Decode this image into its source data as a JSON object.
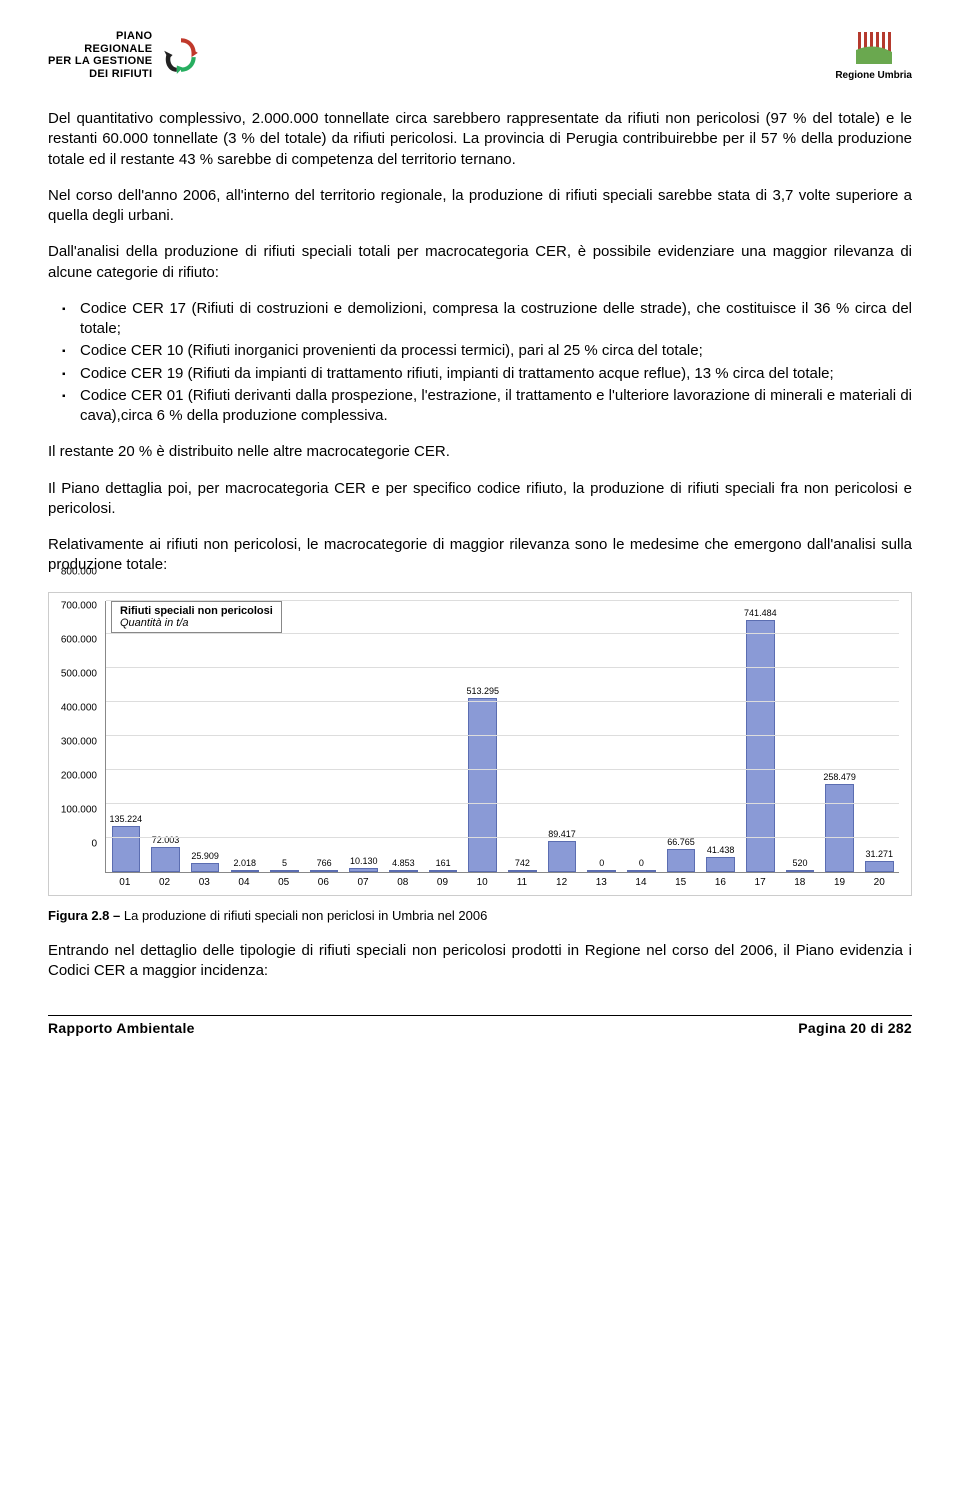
{
  "header": {
    "left_logo_lines": [
      "PIANO",
      "REGIONALE",
      "PER LA GESTIONE",
      "DEI RIFIUTI"
    ],
    "right_label": "Regione Umbria"
  },
  "paragraphs": {
    "p1": "Del quantitativo complessivo, 2.000.000 tonnellate circa sarebbero rappresentate da rifiuti non pericolosi (97 % del totale) e le restanti 60.000 tonnellate (3 % del totale) da rifiuti pericolosi. La provincia di Perugia contribuirebbe per il 57 % della produzione totale ed il restante 43 % sarebbe di competenza del territorio ternano.",
    "p2": "Nel corso dell'anno 2006, all'interno del territorio regionale, la produzione di rifiuti speciali sarebbe stata di 3,7 volte superiore a quella degli urbani.",
    "p3": "Dall'analisi della produzione di rifiuti speciali totali per macrocategoria CER, è possibile evidenziare una maggior rilevanza di alcune categorie di rifiuto:",
    "p4": "Il restante 20 % è distribuito nelle altre macrocategorie CER.",
    "p5": "Il Piano dettaglia poi, per macrocategoria CER e per specifico codice rifiuto, la produzione di rifiuti speciali fra non pericolosi e pericolosi.",
    "p6": "Relativamente ai rifiuti non pericolosi, le macrocategorie di maggior rilevanza sono le medesime che emergono dall'analisi sulla produzione totale:",
    "p7": "Entrando nel dettaglio delle tipologie di rifiuti speciali non pericolosi prodotti in Regione nel corso del 2006, il Piano evidenzia i Codici CER a maggior incidenza:"
  },
  "bullets": {
    "b1": "Codice CER 17 (Rifiuti di costruzioni e demolizioni, compresa la costruzione delle strade), che costituisce il 36 % circa del totale;",
    "b2": "Codice CER 10 (Rifiuti inorganici provenienti da processi termici), pari al 25 % circa del totale;",
    "b3": "Codice CER 19 (Rifiuti da impianti di trattamento rifiuti, impianti di trattamento acque reflue), 13 % circa del totale;",
    "b4": "Codice CER 01 (Rifiuti derivanti dalla prospezione, l'estrazione, il trattamento e l'ulteriore lavorazione di minerali e materiali di cava),circa 6 % della produzione complessiva."
  },
  "chart": {
    "title_line1": "Rifiuti speciali non pericolosi",
    "title_line2": "Quantità in t/a",
    "y_max": 800000,
    "y_ticks": [
      0,
      100000,
      200000,
      300000,
      400000,
      500000,
      600000,
      700000,
      800000
    ],
    "y_tick_labels": [
      "0",
      "100.000",
      "200.000",
      "300.000",
      "400.000",
      "500.000",
      "600.000",
      "700.000",
      "800.000"
    ],
    "categories": [
      "01",
      "02",
      "03",
      "04",
      "05",
      "06",
      "07",
      "08",
      "09",
      "10",
      "11",
      "12",
      "13",
      "14",
      "15",
      "16",
      "17",
      "18",
      "19",
      "20"
    ],
    "values": [
      135224,
      72003,
      25909,
      2018,
      5,
      766,
      10130,
      4853,
      161,
      513295,
      742,
      89417,
      0,
      0,
      66765,
      41438,
      741484,
      520,
      258479,
      31271
    ],
    "value_labels": [
      "135.224",
      "72.003",
      "25.909",
      "2.018",
      "5",
      "766",
      "10.130",
      "4.853",
      "161",
      "513.295",
      "742",
      "89.417",
      "0",
      "0",
      "66.765",
      "41.438",
      "741.484",
      "520",
      "258.479",
      "31.271"
    ],
    "bar_color": "#8a9ad6",
    "bar_border": "#5b6db1",
    "grid_color": "#dddddd",
    "background": "#ffffff"
  },
  "figure_caption": {
    "bold": "Figura 2.8 – ",
    "rest": "La produzione di rifiuti speciali non periclosi in Umbria nel 2006"
  },
  "footer": {
    "left": "Rapporto Ambientale",
    "right": "Pagina 20 di 282"
  }
}
